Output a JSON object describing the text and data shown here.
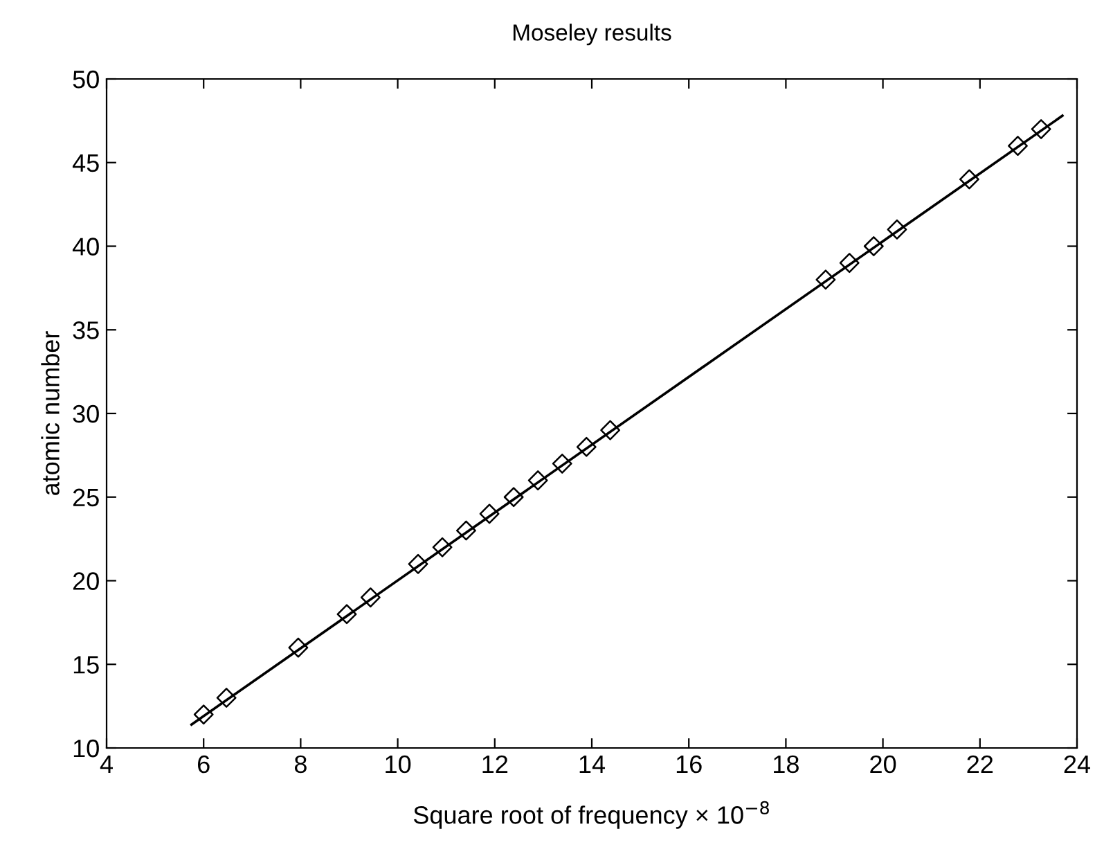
{
  "chart_data": {
    "type": "scatter",
    "title": "Moseley results",
    "xlabel": "Square root of frequency × 10$^{−8}$",
    "ylabel": "atomic number",
    "xlim": [
      4,
      24
    ],
    "xticks": [
      4,
      6,
      8,
      10,
      12,
      14,
      16,
      18,
      20,
      22,
      24
    ],
    "ylim": [
      10,
      50
    ],
    "yticks": [
      10,
      15,
      20,
      25,
      30,
      35,
      40,
      45,
      50
    ],
    "grid": false,
    "legend": false,
    "series": [
      {
        "marker": "diamond",
        "color": "#000000",
        "x": [
          6.0,
          6.47,
          7.95,
          8.95,
          9.44,
          10.42,
          10.92,
          11.41,
          11.89,
          12.39,
          12.89,
          13.39,
          13.89,
          14.38,
          18.82,
          19.31,
          19.81,
          20.29,
          21.78,
          22.78,
          23.26
        ],
        "values": [
          12,
          13,
          16,
          18,
          19,
          21,
          22,
          23,
          24,
          25,
          26,
          27,
          28,
          29,
          38,
          39,
          40,
          41,
          44,
          46,
          47
        ]
      },
      {
        "type": "line",
        "marker": "none",
        "line_style": "solid",
        "color": "#000000",
        "x": [
          5.75,
          23.7
        ],
        "values": [
          11.4,
          47.8
        ]
      }
    ]
  }
}
